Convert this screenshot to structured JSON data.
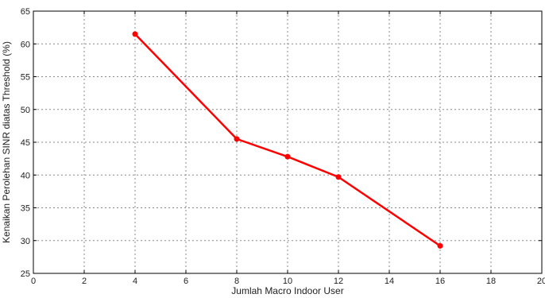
{
  "chart_data": {
    "type": "line",
    "title": "",
    "xlabel": "Jumlah Macro Indoor User",
    "ylabel": "Kenaikan Perolehan SINR diatas Threshold (%)",
    "xlim": [
      0,
      20
    ],
    "ylim": [
      25,
      65
    ],
    "xticks": [
      0,
      2,
      4,
      6,
      8,
      10,
      12,
      14,
      16,
      18,
      20
    ],
    "yticks": [
      25,
      30,
      35,
      40,
      45,
      50,
      55,
      60,
      65
    ],
    "grid": true,
    "legend": "none",
    "series": [
      {
        "color": "#ff0000",
        "marker": "circle",
        "x": [
          4,
          8,
          10,
          12,
          16
        ],
        "y": [
          61.5,
          45.5,
          42.8,
          39.7,
          29.2
        ]
      }
    ]
  }
}
